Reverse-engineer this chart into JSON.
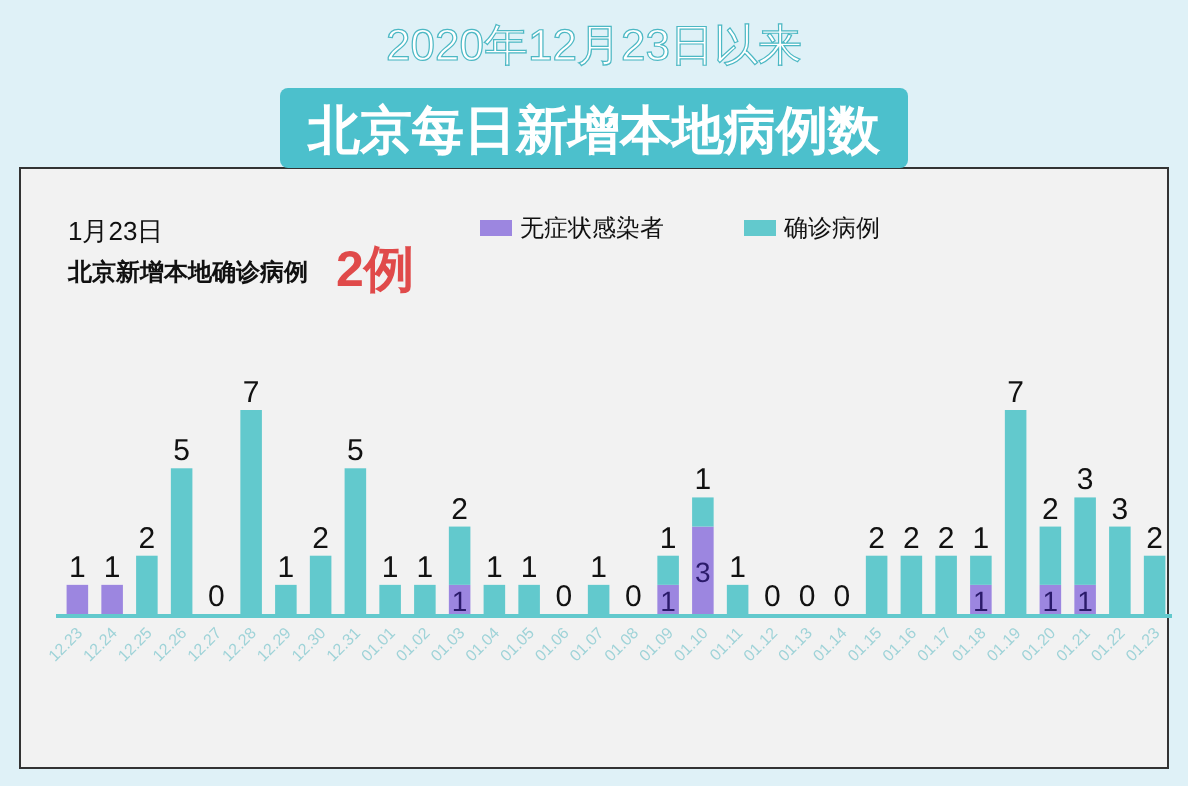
{
  "chart_data": {
    "type": "bar",
    "stacked": true,
    "title": "2020年12月23日以来",
    "subtitle": "北京每日新增本地病例数",
    "annotations": [
      "1月23日",
      "北京新增本地确诊病例",
      "2例"
    ],
    "categories": [
      "12.23",
      "12.24",
      "12.25",
      "12.26",
      "12.27",
      "12.28",
      "12.29",
      "12.30",
      "12.31",
      "01.01",
      "01.02",
      "01.03",
      "01.04",
      "01.05",
      "01.06",
      "01.07",
      "01.08",
      "01.09",
      "01.10",
      "01.11",
      "01.12",
      "01.13",
      "01.14",
      "01.15",
      "01.16",
      "01.17",
      "01.18",
      "01.19",
      "01.20",
      "01.21",
      "01.22",
      "01.23"
    ],
    "series": [
      {
        "name": "无症状感染者",
        "color": "#9c86e0",
        "values": [
          1,
          1,
          0,
          0,
          0,
          0,
          0,
          0,
          0,
          0,
          0,
          1,
          0,
          0,
          0,
          0,
          0,
          1,
          3,
          0,
          0,
          0,
          0,
          0,
          0,
          0,
          1,
          0,
          1,
          1,
          0,
          0
        ],
        "value_labels": [
          "1",
          "1",
          null,
          null,
          null,
          null,
          null,
          null,
          null,
          null,
          null,
          "1",
          null,
          null,
          null,
          null,
          null,
          "1",
          "3",
          null,
          null,
          null,
          null,
          null,
          null,
          null,
          "1",
          null,
          "1",
          "1",
          null,
          null
        ]
      },
      {
        "name": "确诊病例",
        "color": "#62c9cd",
        "values": [
          0,
          0,
          2,
          5,
          0,
          7,
          1,
          2,
          5,
          1,
          1,
          2,
          1,
          1,
          0,
          1,
          0,
          1,
          1,
          1,
          0,
          0,
          0,
          2,
          2,
          2,
          1,
          7,
          2,
          3,
          3,
          2
        ],
        "value_labels": [
          null,
          null,
          "2",
          "5",
          "0",
          "7",
          "1",
          "2",
          "5",
          "1",
          "1",
          "2",
          "1",
          "1",
          "0",
          "1",
          "0",
          "1",
          "1",
          "1",
          "0",
          "0",
          "0",
          "2",
          "2",
          "2",
          "1",
          "7",
          "2",
          "3",
          "3",
          "2"
        ]
      }
    ],
    "legend": "top"
  }
}
